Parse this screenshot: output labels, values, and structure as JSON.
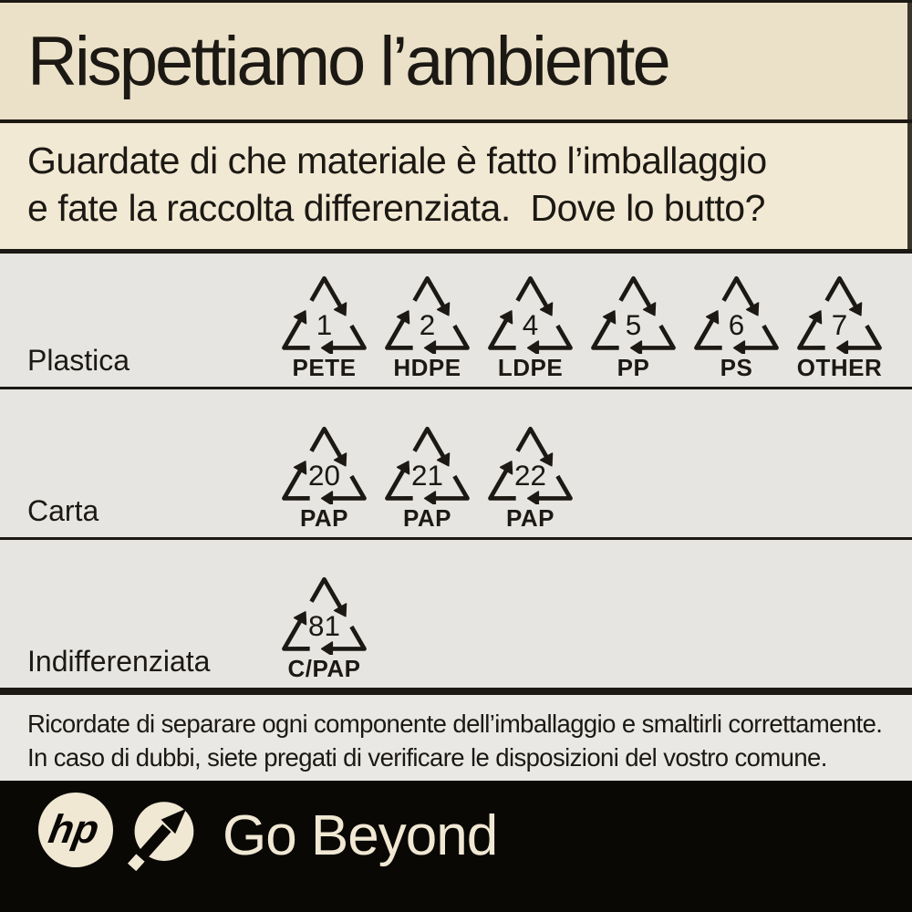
{
  "title": "Rispettiamo l’ambiente",
  "subtitle_line1": "Guardate di che materiale è fatto l’imballaggio",
  "subtitle_line2": "e fate la raccolta differenziata.  Dove lo butto?",
  "rows": [
    {
      "label": "Plastica",
      "symbols": [
        {
          "number": "1",
          "code": "PETE"
        },
        {
          "number": "2",
          "code": "HDPE"
        },
        {
          "number": "4",
          "code": "LDPE"
        },
        {
          "number": "5",
          "code": "PP"
        },
        {
          "number": "6",
          "code": "PS"
        },
        {
          "number": "7",
          "code": "OTHER"
        }
      ]
    },
    {
      "label": "Carta",
      "symbols": [
        {
          "number": "20",
          "code": "PAP"
        },
        {
          "number": "21",
          "code": "PAP"
        },
        {
          "number": "22",
          "code": "PAP"
        }
      ]
    },
    {
      "label": "Indifferenziata",
      "symbols": [
        {
          "number": "81",
          "code": "C/PAP"
        }
      ]
    }
  ],
  "note_line1": "Ricordate di separare ogni componente dell’imballaggio e smaltirli correttamente.",
  "note_line2": "In caso di dubbi, siete pregati di verificare le disposizioni del vostro comune.",
  "footer": {
    "logo_text": "hp",
    "tagline": "Go Beyond"
  },
  "colors": {
    "ink": "#1c1914",
    "beige1": "#ebe1c8",
    "beige2": "#f2e9d4",
    "gray": "#e6e5e2",
    "gray2": "#e9e8e5",
    "black": "#0a0805",
    "cream": "#f1e8d4"
  }
}
